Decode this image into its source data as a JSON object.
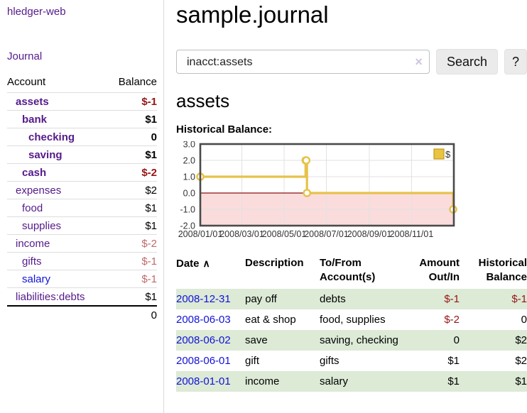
{
  "sidebar": {
    "app_title": "hledger-web",
    "journal_label": "Journal",
    "accounts": {
      "col_account": "Account",
      "col_balance": "Balance",
      "rows": [
        {
          "name": "assets",
          "indent": 0,
          "bold": true,
          "balance": "$-1",
          "negative": "strong"
        },
        {
          "name": "bank",
          "indent": 1,
          "bold": true,
          "balance": "$1"
        },
        {
          "name": "checking",
          "indent": 2,
          "bold": true,
          "balance": "0"
        },
        {
          "name": "saving",
          "indent": 2,
          "bold": true,
          "balance": "$1"
        },
        {
          "name": "cash",
          "indent": 1,
          "bold": true,
          "balance": "$-2",
          "negative": "strong"
        },
        {
          "name": "expenses",
          "indent": 0,
          "bold": false,
          "balance": "$2"
        },
        {
          "name": "food",
          "indent": 1,
          "bold": false,
          "balance": "$1"
        },
        {
          "name": "supplies",
          "indent": 1,
          "bold": false,
          "balance": "$1"
        },
        {
          "name": "income",
          "indent": 0,
          "bold": false,
          "balance": "$-2",
          "negative": "soft"
        },
        {
          "name": "gifts",
          "indent": 1,
          "bold": false,
          "balance": "$-1",
          "negative": "soft"
        },
        {
          "name": "salary",
          "indent": 1,
          "bold": false,
          "balance": "$-1",
          "negative": "soft",
          "link_color": "blue"
        },
        {
          "name": "liabilities:debts",
          "indent": 0,
          "bold": false,
          "balance": "$1"
        }
      ],
      "total": "0"
    }
  },
  "main": {
    "title": "sample.journal",
    "search": {
      "value": "inacct:assets",
      "clear_icon": "×",
      "button_label": "Search",
      "help_label": "?"
    },
    "account_heading": "assets",
    "chart_label": "Historical Balance:"
  },
  "chart_data": {
    "type": "line",
    "title": "Historical Balance",
    "step": true,
    "legend": [
      {
        "label": "$",
        "color": "#e9c440",
        "border": "#c49a23"
      }
    ],
    "legend_position": "top-right",
    "grid": true,
    "x_range": [
      "2008-01-01",
      "2009-01-01"
    ],
    "x_ticks": [
      "2008/01/01",
      "2008/03/01",
      "2008/05/01",
      "2008/07/01",
      "2008/09/01",
      "2008/11/01"
    ],
    "y_ticks": [
      3.0,
      2.0,
      1.0,
      0.0,
      -1.0,
      -2.0
    ],
    "ylim": [
      -2.0,
      3.0
    ],
    "series": [
      {
        "name": "$",
        "points": [
          [
            "2008-01-01",
            1
          ],
          [
            "2008-06-01",
            2
          ],
          [
            "2008-06-02",
            2
          ],
          [
            "2008-06-03",
            0
          ],
          [
            "2008-12-31",
            -1
          ]
        ]
      }
    ],
    "line_color": "#e7c24a",
    "marker_fill": "#ffffff",
    "negative_region_color": "#fbdcdc",
    "zero_line_color": "#8b1010",
    "gridline_color": "#e2e2e2",
    "border_color": "#4a4a4a"
  },
  "register": {
    "columns": [
      "Date",
      "Description",
      "To/From Account(s)",
      "Amount Out/In",
      "Historical Balance"
    ],
    "sort_icon": "∧",
    "rows": [
      {
        "date": "2008-12-31",
        "description": "pay off",
        "accounts": "debts",
        "amount": "$-1",
        "amount_neg": true,
        "balance": "$-1",
        "balance_neg": true,
        "striped": true
      },
      {
        "date": "2008-06-03",
        "description": "eat & shop",
        "accounts": "food, supplies",
        "amount": "$-2",
        "amount_neg": true,
        "balance": "0",
        "balance_neg": false,
        "striped": false
      },
      {
        "date": "2008-06-02",
        "description": "save",
        "accounts": "saving, checking",
        "amount": "0",
        "amount_neg": false,
        "balance": "$2",
        "balance_neg": false,
        "striped": true
      },
      {
        "date": "2008-06-01",
        "description": "gift",
        "accounts": "gifts",
        "amount": "$1",
        "amount_neg": false,
        "balance": "$2",
        "balance_neg": false,
        "striped": false
      },
      {
        "date": "2008-01-01",
        "description": "income",
        "accounts": "salary",
        "amount": "$1",
        "amount_neg": false,
        "balance": "$1",
        "balance_neg": false,
        "striped": true
      }
    ]
  }
}
